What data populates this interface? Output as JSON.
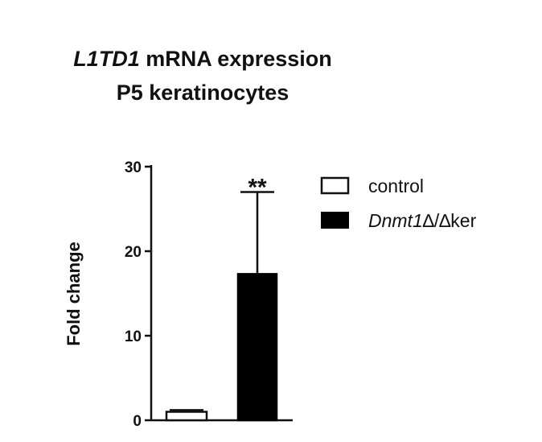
{
  "chart_data": {
    "type": "bar",
    "title_line1_italic": "L1TD1",
    "title_line1_rest": " mRNA expression",
    "title_line2": "P5 keratinocytes",
    "ylabel": "Fold change",
    "ylim": [
      0,
      30
    ],
    "yticks": [
      "0",
      "10",
      "20",
      "30"
    ],
    "series": [
      {
        "name": "control",
        "value": 1.0,
        "error": 0.2,
        "fill": "#ffffff",
        "stroke": "#111111"
      },
      {
        "name_italic": "Dnmt1",
        "name_rest": "∆/∆ker",
        "value": 17.3,
        "error": 9.7,
        "fill": "#000000",
        "stroke": "#000000"
      }
    ],
    "annotations": [
      {
        "text": "**",
        "series_index": 1
      }
    ],
    "legend_position": "right"
  }
}
